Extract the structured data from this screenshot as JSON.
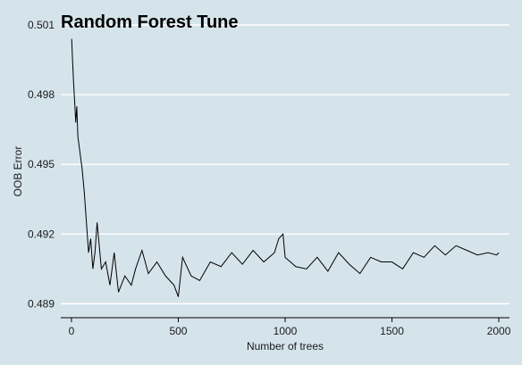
{
  "chart_data": {
    "type": "line",
    "title": "Random Forest Tune",
    "xlabel": "Number of trees",
    "ylabel": "OOB Error",
    "xlim": [
      -50,
      2050
    ],
    "ylim": [
      0.4884,
      0.501
    ],
    "xticks": [
      0,
      500,
      1000,
      1500,
      2000
    ],
    "xtick_labels": [
      "0",
      "500",
      "1000",
      "1500",
      "2000"
    ],
    "yticks": [
      0.489,
      0.492,
      0.495,
      0.498,
      0.501
    ],
    "ytick_labels": [
      "0.489",
      "0.492",
      "0.495",
      "0.498",
      "0.501"
    ],
    "grid": "horizontal-major",
    "colors": {
      "background": "#d5e4eb",
      "grid": "#ffffff",
      "line": "#000000"
    },
    "series": [
      {
        "x": [
          1,
          5,
          10,
          15,
          20,
          25,
          30,
          40,
          50,
          60,
          70,
          80,
          90,
          100,
          110,
          120,
          140,
          160,
          180,
          200,
          220,
          250,
          280,
          300,
          330,
          360,
          400,
          440,
          480,
          500,
          520,
          560,
          600,
          650,
          700,
          750,
          800,
          850,
          900,
          950,
          970,
          990,
          1000,
          1050,
          1100,
          1150,
          1200,
          1250,
          1300,
          1350,
          1400,
          1450,
          1500,
          1550,
          1600,
          1650,
          1700,
          1750,
          1800,
          1850,
          1900,
          1950,
          1990,
          2000
        ],
        "y": [
          0.5004,
          0.4995,
          0.4985,
          0.4977,
          0.4968,
          0.4975,
          0.4962,
          0.4955,
          0.4948,
          0.4938,
          0.4925,
          0.4912,
          0.4918,
          0.4905,
          0.4912,
          0.4925,
          0.4905,
          0.4908,
          0.4898,
          0.4912,
          0.4895,
          0.4902,
          0.4898,
          0.4905,
          0.4913,
          0.4903,
          0.4908,
          0.4902,
          0.4898,
          0.4893,
          0.491,
          0.4902,
          0.49,
          0.4908,
          0.4906,
          0.4912,
          0.4907,
          0.4913,
          0.4908,
          0.4912,
          0.4918,
          0.492,
          0.491,
          0.4906,
          0.4905,
          0.491,
          0.4904,
          0.4912,
          0.4907,
          0.4903,
          0.491,
          0.4908,
          0.4908,
          0.4905,
          0.4912,
          0.491,
          0.4915,
          0.4911,
          0.4915,
          0.4913,
          0.4911,
          0.4912,
          0.4911,
          0.4912
        ]
      }
    ]
  }
}
